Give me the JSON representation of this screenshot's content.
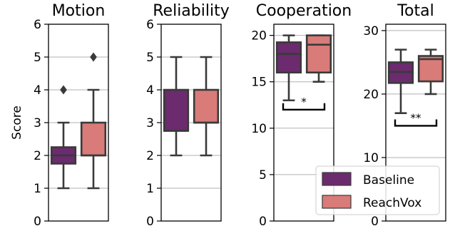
{
  "chart_data": [
    {
      "type": "box",
      "title": "Motion",
      "ylabel": "Score",
      "ylim": [
        0,
        6
      ],
      "yticks": [
        0,
        1,
        2,
        3,
        4,
        5,
        6
      ],
      "grid": "y",
      "series": [
        {
          "name": "Baseline",
          "whislo": 1,
          "q1": 1.75,
          "med": 2,
          "q3": 2.25,
          "whishi": 3,
          "fliers": [
            4
          ]
        },
        {
          "name": "ReachVox",
          "whislo": 1,
          "q1": 2,
          "med": 2,
          "q3": 3,
          "whishi": 4,
          "fliers": [
            5
          ]
        }
      ],
      "significance": null
    },
    {
      "type": "box",
      "title": "Reliability",
      "ylim": [
        0,
        6
      ],
      "yticks": [
        0,
        1,
        2,
        3,
        4,
        5,
        6
      ],
      "grid": "y",
      "series": [
        {
          "name": "Baseline",
          "whislo": 2,
          "q1": 2.75,
          "med": 2.75,
          "q3": 4,
          "whishi": 5,
          "fliers": []
        },
        {
          "name": "ReachVox",
          "whislo": 2,
          "q1": 3,
          "med": 3,
          "q3": 4,
          "whishi": 5,
          "fliers": []
        }
      ],
      "significance": null
    },
    {
      "type": "box",
      "title": "Cooperation",
      "ylim": [
        0,
        21.2
      ],
      "yticks": [
        0,
        5,
        10,
        15,
        20
      ],
      "grid": "y",
      "series": [
        {
          "name": "Baseline",
          "whislo": 13,
          "q1": 16,
          "med": 18,
          "q3": 19.25,
          "whishi": 20,
          "fliers": []
        },
        {
          "name": "ReachVox",
          "whislo": 15,
          "q1": 16,
          "med": 19,
          "q3": 20,
          "whishi": 20,
          "fliers": []
        }
      ],
      "significance": {
        "label": "*",
        "y": 12
      }
    },
    {
      "type": "box",
      "title": "Total",
      "ylim": [
        0,
        31
      ],
      "yticks": [
        0,
        10,
        20,
        30
      ],
      "grid": "y",
      "series": [
        {
          "name": "Baseline",
          "whislo": 17,
          "q1": 21.75,
          "med": 23.5,
          "q3": 25,
          "whishi": 27,
          "fliers": []
        },
        {
          "name": "ReachVox",
          "whislo": 20,
          "q1": 22,
          "med": 25.5,
          "q3": 26,
          "whishi": 27,
          "fliers": []
        }
      ],
      "significance": {
        "label": "**",
        "y": 15
      }
    }
  ],
  "legend": {
    "placement": "lower-right",
    "entries": [
      {
        "label": "Baseline",
        "color": "#6b2b6e"
      },
      {
        "label": "ReachVox",
        "color": "#d97b78"
      }
    ]
  },
  "colors": {
    "baseline": "#6b2b6e",
    "reachvox": "#d97b78",
    "line": "#3a3a3a",
    "grid": "#b0b0b0"
  }
}
